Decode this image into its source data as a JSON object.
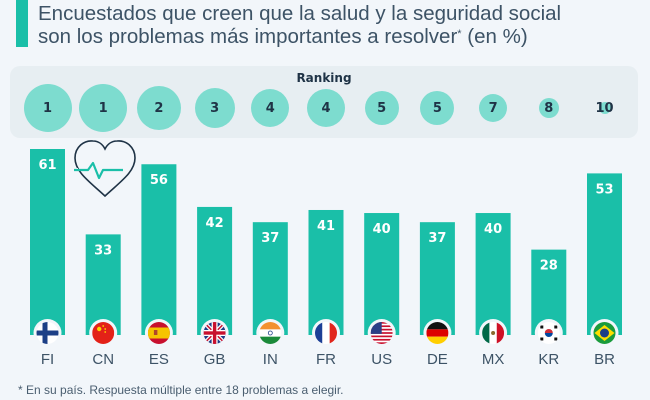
{
  "header": {
    "title_line1": "Encuestados que creen que la salud y la seguridad social",
    "title_line2": "son los problemas más importantes a resolver",
    "title_asterisk": "*",
    "title_suffix": " (en %)"
  },
  "ranking": {
    "label": "Ranking",
    "values": [
      "1",
      "1",
      "2",
      "3",
      "4",
      "4",
      "5",
      "5",
      "7",
      "8",
      "10"
    ]
  },
  "chart_data": {
    "type": "bar",
    "title": "Encuestados que creen que la salud y la seguridad social son los problemas más importantes a resolver* (en %)",
    "categories": [
      "FI",
      "CN",
      "ES",
      "GB",
      "IN",
      "FR",
      "US",
      "DE",
      "MX",
      "KR",
      "BR"
    ],
    "values": [
      61,
      33,
      56,
      42,
      37,
      41,
      40,
      37,
      40,
      28,
      53
    ],
    "value_labels": [
      "61",
      "33",
      "56",
      "42",
      "37",
      "41",
      "40",
      "37",
      "40",
      "28",
      "53"
    ],
    "ranks": [
      1,
      1,
      2,
      3,
      4,
      4,
      5,
      5,
      7,
      8,
      10
    ],
    "xlabel": "",
    "ylabel": "",
    "ylim": [
      0,
      65
    ],
    "grid": false,
    "legend": "none",
    "bar_color": "#1abfa8",
    "rank_circle_color": "#7ddccf",
    "flag_icons": [
      "finland-flag-icon",
      "china-flag-icon",
      "spain-flag-icon",
      "uk-flag-icon",
      "india-flag-icon",
      "france-flag-icon",
      "usa-flag-icon",
      "germany-flag-icon",
      "mexico-flag-icon",
      "korea-flag-icon",
      "brazil-flag-icon"
    ]
  },
  "decoration": {
    "icon": "heart-pulse-icon"
  },
  "footnote": "* En su país. Respuesta múltiple entre 18 problemas a elegir."
}
